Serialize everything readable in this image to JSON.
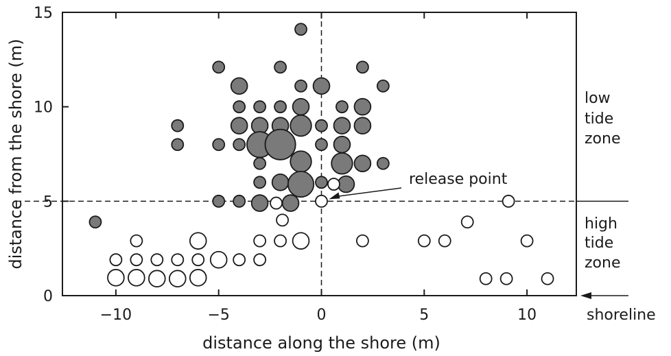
{
  "chart_data": {
    "type": "scatter",
    "title": "",
    "xlabel": "distance along the shore (m)",
    "ylabel": "distance from the shore (m)",
    "xlim": [
      -12.6,
      12.4
    ],
    "ylim": [
      0,
      15
    ],
    "xticks": [
      -10,
      -5,
      0,
      5,
      10
    ],
    "xtick_labels": [
      "−10",
      "−5",
      "0",
      "5",
      "10"
    ],
    "yticks": [
      0,
      5,
      10,
      15
    ],
    "ytick_labels": [
      "0",
      "5",
      "10",
      "15"
    ],
    "grid": false,
    "reference_lines": {
      "x": 0,
      "y": 5,
      "style": "dashed"
    },
    "marker_colors": {
      "low_tide": "#7a7a7a",
      "high_tide": "#ffffff",
      "edge": "#1a1a1a"
    },
    "series": [
      {
        "fill": "#7a7a7a",
        "points": [
          {
            "x": -1,
            "y": 14.1,
            "s": 1
          },
          {
            "x": -5,
            "y": 12.1,
            "s": 1
          },
          {
            "x": -2,
            "y": 12.1,
            "s": 1
          },
          {
            "x": 2,
            "y": 12.1,
            "s": 1
          },
          {
            "x": -4,
            "y": 11.1,
            "s": 2
          },
          {
            "x": -1,
            "y": 11.1,
            "s": 1
          },
          {
            "x": 0,
            "y": 11.1,
            "s": 2
          },
          {
            "x": 3,
            "y": 11.1,
            "s": 1
          },
          {
            "x": -4,
            "y": 10,
            "s": 1
          },
          {
            "x": -3,
            "y": 10,
            "s": 1
          },
          {
            "x": -2,
            "y": 10,
            "s": 1
          },
          {
            "x": -1,
            "y": 10,
            "s": 2
          },
          {
            "x": 1,
            "y": 10,
            "s": 1
          },
          {
            "x": 2,
            "y": 10,
            "s": 2
          },
          {
            "x": -7,
            "y": 9,
            "s": 1
          },
          {
            "x": -4,
            "y": 9,
            "s": 2
          },
          {
            "x": -3,
            "y": 9,
            "s": 2
          },
          {
            "x": -2,
            "y": 9,
            "s": 2
          },
          {
            "x": -1,
            "y": 9,
            "s": 3
          },
          {
            "x": 0,
            "y": 9,
            "s": 1
          },
          {
            "x": 1,
            "y": 9,
            "s": 2
          },
          {
            "x": 2,
            "y": 9,
            "s": 2
          },
          {
            "x": -7,
            "y": 8,
            "s": 1
          },
          {
            "x": -5,
            "y": 8,
            "s": 1
          },
          {
            "x": -4,
            "y": 8,
            "s": 1
          },
          {
            "x": -3,
            "y": 8,
            "s": 4
          },
          {
            "x": -2,
            "y": 8,
            "s": 5
          },
          {
            "x": 0,
            "y": 8,
            "s": 1
          },
          {
            "x": 1,
            "y": 8,
            "s": 2
          },
          {
            "x": -3,
            "y": 7,
            "s": 1
          },
          {
            "x": -1,
            "y": 7.1,
            "s": 3
          },
          {
            "x": 1,
            "y": 7,
            "s": 3
          },
          {
            "x": 2,
            "y": 7,
            "s": 2
          },
          {
            "x": 3,
            "y": 7,
            "s": 1
          },
          {
            "x": -3,
            "y": 6,
            "s": 1
          },
          {
            "x": -2,
            "y": 6,
            "s": 2
          },
          {
            "x": -1,
            "y": 5.9,
            "s": 4
          },
          {
            "x": 0,
            "y": 6,
            "s": 1
          },
          {
            "x": 1.2,
            "y": 5.9,
            "s": 2
          },
          {
            "x": -5,
            "y": 5,
            "s": 1
          },
          {
            "x": -4,
            "y": 5,
            "s": 1
          },
          {
            "x": -3,
            "y": 4.9,
            "s": 2
          },
          {
            "x": -1.5,
            "y": 4.9,
            "s": 2
          },
          {
            "x": -11,
            "y": 3.9,
            "s": 1
          }
        ]
      },
      {
        "fill": "#ffffff",
        "points": [
          {
            "x": 0.6,
            "y": 5.9,
            "s": 1
          },
          {
            "x": -2.2,
            "y": 4.9,
            "s": 1
          },
          {
            "x": 0,
            "y": 5,
            "s": 1
          },
          {
            "x": 9.1,
            "y": 5,
            "s": 1
          },
          {
            "x": -1.9,
            "y": 4,
            "s": 1
          },
          {
            "x": 7.1,
            "y": 3.9,
            "s": 1
          },
          {
            "x": -9,
            "y": 2.9,
            "s": 1
          },
          {
            "x": -6,
            "y": 2.9,
            "s": 2
          },
          {
            "x": -3,
            "y": 2.9,
            "s": 1
          },
          {
            "x": -2,
            "y": 2.9,
            "s": 1
          },
          {
            "x": -1,
            "y": 2.9,
            "s": 2
          },
          {
            "x": 2,
            "y": 2.9,
            "s": 1
          },
          {
            "x": 5,
            "y": 2.9,
            "s": 1
          },
          {
            "x": 6,
            "y": 2.9,
            "s": 1
          },
          {
            "x": 10,
            "y": 2.9,
            "s": 1
          },
          {
            "x": -10,
            "y": 1.9,
            "s": 1
          },
          {
            "x": -9,
            "y": 1.9,
            "s": 1
          },
          {
            "x": -8,
            "y": 1.9,
            "s": 1
          },
          {
            "x": -7,
            "y": 1.9,
            "s": 1
          },
          {
            "x": -6,
            "y": 1.9,
            "s": 1
          },
          {
            "x": -5,
            "y": 1.9,
            "s": 2
          },
          {
            "x": -4,
            "y": 1.9,
            "s": 1
          },
          {
            "x": -3,
            "y": 1.9,
            "s": 1
          },
          {
            "x": -10,
            "y": 0.95,
            "s": 2
          },
          {
            "x": -9,
            "y": 0.95,
            "s": 2
          },
          {
            "x": -8,
            "y": 0.9,
            "s": 2
          },
          {
            "x": -7,
            "y": 0.9,
            "s": 2
          },
          {
            "x": -6,
            "y": 0.95,
            "s": 2
          },
          {
            "x": 8,
            "y": 0.9,
            "s": 1
          },
          {
            "x": 9,
            "y": 0.9,
            "s": 1
          },
          {
            "x": 11,
            "y": 0.9,
            "s": 1
          }
        ]
      }
    ],
    "annotations": [
      {
        "text": "release point",
        "arrow_to": {
          "x": 0,
          "y": 5
        }
      },
      {
        "text": "shoreline",
        "arrow_to_y": 0
      }
    ],
    "zone_labels": [
      {
        "lines": [
          "low",
          "tide",
          "zone"
        ]
      },
      {
        "lines": [
          "high",
          "tide",
          "zone"
        ]
      }
    ]
  }
}
